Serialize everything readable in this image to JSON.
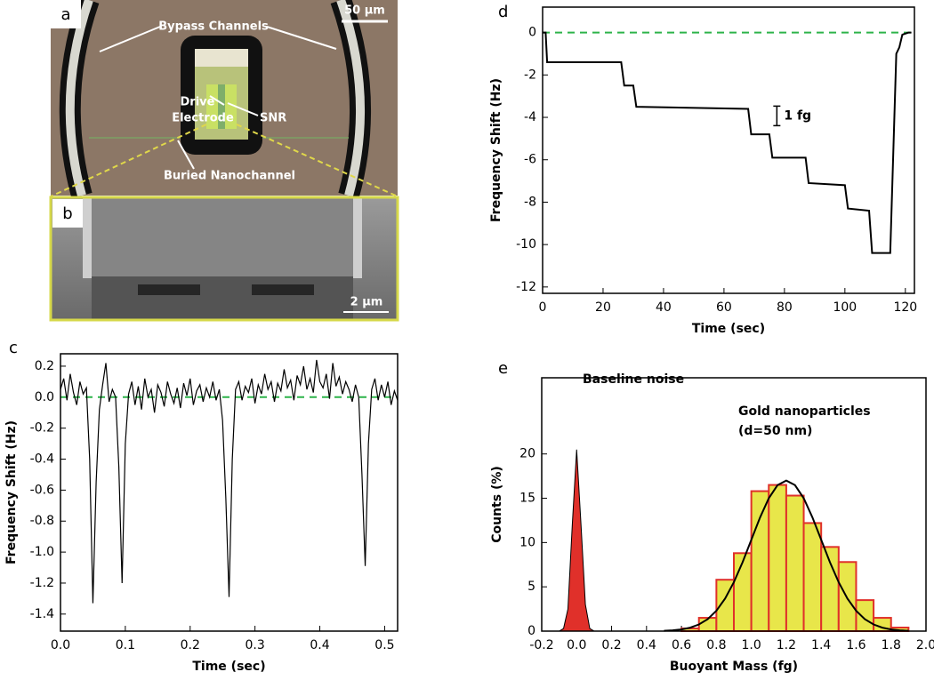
{
  "figure_panels": [
    {
      "label": "a",
      "annotations": [
        "Bypass Channels",
        "Drive",
        "Electrode",
        "SNR",
        "Buried Nanochannel"
      ],
      "scale_bar": "50 µm"
    },
    {
      "label": "b",
      "scale_bar": "2 µm"
    }
  ],
  "chart_data": [
    {
      "type": "line",
      "panel": "c",
      "xlabel": "Time (sec)",
      "ylabel": "Frequency Shift (Hz)",
      "x": [
        0,
        0.005,
        0.01,
        0.015,
        0.02,
        0.025,
        0.03,
        0.035,
        0.04,
        0.045,
        0.05,
        0.055,
        0.06,
        0.065,
        0.07,
        0.075,
        0.08,
        0.085,
        0.09,
        0.095,
        0.1,
        0.105,
        0.11,
        0.115,
        0.12,
        0.125,
        0.13,
        0.135,
        0.14,
        0.145,
        0.15,
        0.155,
        0.16,
        0.165,
        0.17,
        0.175,
        0.18,
        0.185,
        0.19,
        0.195,
        0.2,
        0.205,
        0.21,
        0.215,
        0.22,
        0.225,
        0.23,
        0.235,
        0.24,
        0.245,
        0.25,
        0.255,
        0.26,
        0.265,
        0.27,
        0.275,
        0.28,
        0.285,
        0.29,
        0.295,
        0.3,
        0.305,
        0.31,
        0.315,
        0.32,
        0.325,
        0.33,
        0.335,
        0.34,
        0.345,
        0.35,
        0.355,
        0.36,
        0.365,
        0.37,
        0.375,
        0.38,
        0.385,
        0.39,
        0.395,
        0.4,
        0.405,
        0.41,
        0.415,
        0.42,
        0.425,
        0.43,
        0.435,
        0.44,
        0.445,
        0.45,
        0.455,
        0.46,
        0.465,
        0.47,
        0.475,
        0.48,
        0.485,
        0.49,
        0.495,
        0.5,
        0.505,
        0.51,
        0.515,
        0.52
      ],
      "values": [
        0.05,
        0.12,
        -0.02,
        0.15,
        0.03,
        -0.05,
        0.1,
        0.02,
        0.06,
        -0.4,
        -1.33,
        -0.55,
        -0.08,
        0.08,
        0.22,
        -0.03,
        0.05,
        0.0,
        -0.45,
        -1.2,
        -0.3,
        0.02,
        0.1,
        -0.05,
        0.07,
        -0.08,
        0.12,
        0.0,
        0.05,
        -0.1,
        0.08,
        0.03,
        -0.06,
        0.1,
        0.02,
        -0.04,
        0.06,
        -0.07,
        0.09,
        0.01,
        0.12,
        -0.05,
        0.04,
        0.08,
        -0.03,
        0.06,
        0.0,
        0.1,
        -0.02,
        0.05,
        -0.15,
        -0.65,
        -1.29,
        -0.4,
        0.05,
        0.1,
        -0.02,
        0.07,
        0.03,
        0.12,
        -0.04,
        0.08,
        0.02,
        0.15,
        0.05,
        0.1,
        -0.03,
        0.09,
        0.04,
        0.18,
        0.06,
        0.11,
        -0.02,
        0.14,
        0.08,
        0.2,
        0.05,
        0.12,
        0.03,
        0.24,
        0.1,
        0.06,
        0.15,
        -0.01,
        0.22,
        0.07,
        0.13,
        0.02,
        0.1,
        0.05,
        -0.03,
        0.08,
        0.0,
        -0.5,
        -1.09,
        -0.3,
        0.05,
        0.12,
        -0.02,
        0.08,
        0.0,
        0.1,
        -0.05,
        0.04,
        -0.02
      ],
      "color": "#000000",
      "reference_line": 0,
      "reference_line_color": "#2db34a",
      "xlim": [
        0,
        0.52
      ],
      "ylim": [
        -1.51,
        0.28
      ],
      "xticks": [
        {
          "value": 0,
          "label": "0.0"
        },
        0.1,
        0.2,
        0.3,
        0.4,
        0.5
      ],
      "yticks": [
        0.2,
        {
          "value": 0,
          "label": "0.0"
        },
        -0.2,
        -0.4,
        -0.6,
        -0.8,
        {
          "value": -1,
          "label": "-1.0"
        },
        -1.2,
        -1.4
      ]
    },
    {
      "type": "line",
      "panel": "d",
      "xlabel": "Time (sec)",
      "ylabel": "Frequency Shift (Hz)",
      "x": [
        0,
        1,
        1.5,
        26,
        27,
        30,
        31,
        68,
        69,
        75,
        76,
        87,
        88,
        100,
        101,
        108,
        109,
        115,
        117,
        118,
        119,
        121,
        122
      ],
      "values": [
        0,
        0,
        -1.4,
        -1.4,
        -2.5,
        -2.5,
        -3.5,
        -3.6,
        -4.8,
        -4.8,
        -5.9,
        -5.9,
        -7.1,
        -7.2,
        -8.3,
        -8.4,
        -10.4,
        -10.4,
        -1,
        -0.7,
        -0.1,
        0,
        0
      ],
      "color": "#000000",
      "reference_line": 0,
      "reference_line_color": "#2db34a",
      "annotation": "1 fg",
      "xlim": [
        0,
        123
      ],
      "ylim": [
        -12.3,
        1.2
      ],
      "xticks": [
        0,
        20,
        40,
        60,
        80,
        100,
        120
      ],
      "yticks": [
        0,
        -2,
        -4,
        -6,
        -8,
        -10,
        -12
      ]
    },
    {
      "type": "histogram",
      "panel": "e",
      "xlabel": "Buoyant Mass (fg)",
      "ylabel": "Counts (%)",
      "annotations": [
        "Baseline noise",
        "Gold nanoparticles",
        "(d=50 nm)"
      ],
      "bins": [
        0.6,
        0.7,
        0.8,
        0.9,
        1.0,
        1.1,
        1.2,
        1.3,
        1.4,
        1.5,
        1.6,
        1.7,
        1.8,
        1.9
      ],
      "values": [
        0.3,
        1.5,
        5.8,
        8.8,
        15.8,
        16.5,
        15.3,
        12.2,
        9.5,
        7.8,
        3.5,
        1.5,
        0.4
      ],
      "color": "#e8e64a",
      "edge_color": "#e0302a",
      "curve": {
        "x": [
          0.5,
          0.55,
          0.6,
          0.65,
          0.7,
          0.75,
          0.8,
          0.85,
          0.9,
          0.95,
          1.0,
          1.05,
          1.1,
          1.15,
          1.2,
          1.25,
          1.3,
          1.35,
          1.4,
          1.45,
          1.5,
          1.55,
          1.6,
          1.65,
          1.7,
          1.75,
          1.8,
          1.85,
          1.9
        ],
        "values": [
          0.04,
          0.09,
          0.19,
          0.39,
          0.75,
          1.35,
          2.3,
          3.68,
          5.52,
          7.78,
          10.31,
          12.83,
          15.0,
          16.48,
          17,
          16.48,
          15.0,
          12.83,
          10.31,
          7.78,
          5.52,
          3.68,
          2.3,
          1.35,
          0.75,
          0.39,
          0.19,
          0.09,
          0.04
        ],
        "color": "#000000"
      },
      "baseline": {
        "x": [
          -0.1,
          -0.075,
          -0.05,
          -0.025,
          0,
          0.025,
          0.05,
          0.075,
          0.1
        ],
        "values": [
          0,
          0.3,
          2.5,
          12,
          20.5,
          12,
          3,
          0.3,
          0
        ],
        "color": "#e0302a"
      },
      "xlim": [
        -0.2,
        2.0
      ],
      "ylim": [
        0,
        28.6
      ],
      "xticks": [
        -0.2,
        {
          "value": 0,
          "label": "0.0"
        },
        0.2,
        0.4,
        0.6,
        0.8,
        {
          "value": 1,
          "label": "1.0"
        },
        1.2,
        1.4,
        1.6,
        1.8,
        {
          "value": 2,
          "label": "2.0"
        }
      ],
      "yticks": [
        0,
        5,
        10,
        15,
        20
      ]
    }
  ]
}
